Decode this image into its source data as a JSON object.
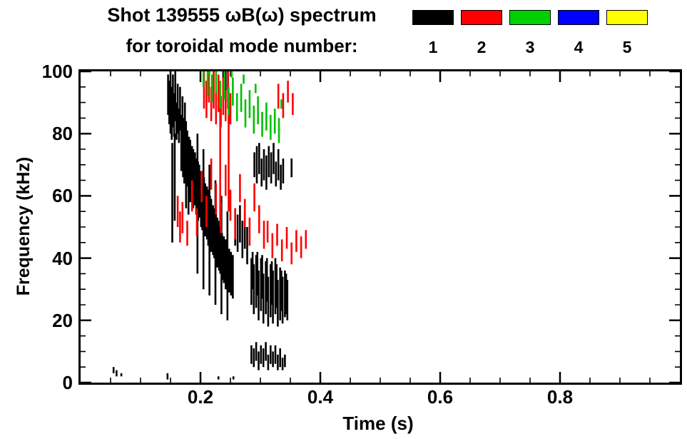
{
  "title_line1": "Shot 139555 ωB(ω) spectrum",
  "title_line2": "for toroidal mode number:",
  "legend": {
    "modes": [
      {
        "label": "1",
        "color": "#000000"
      },
      {
        "label": "2",
        "color": "#ff0000"
      },
      {
        "label": "3",
        "color": "#00d000"
      },
      {
        "label": "4",
        "color": "#0000ff"
      },
      {
        "label": "5",
        "color": "#ffff00"
      }
    ]
  },
  "chart_data": {
    "type": "scatter",
    "title": "Shot 139555 ωB(ω) spectrum for toroidal mode number: 1 2 3 4 5",
    "xlabel": "Time (s)",
    "ylabel": "Frequency (kHz)",
    "xlim": [
      0,
      1
    ],
    "ylim": [
      0,
      100
    ],
    "grid": false,
    "legend_position": "top-right",
    "xticks": {
      "major": [
        0.2,
        0.4,
        0.6,
        0.8
      ],
      "labels": [
        "0.2",
        "0.4",
        "0.6",
        "0.8"
      ],
      "minor_step": 0.05
    },
    "yticks": {
      "major": [
        0,
        20,
        40,
        60,
        80,
        100
      ],
      "labels": [
        "0",
        "20",
        "40",
        "60",
        "80",
        "100"
      ],
      "minor_step": 5
    },
    "segment_format": "[time_s, freq_low_kHz, freq_high_kHz]",
    "series": [
      {
        "name": "n1",
        "mode_number": 1,
        "color": "#000000",
        "segments": [
          [
            0.146,
            86,
            99
          ],
          [
            0.148,
            83,
            97
          ],
          [
            0.15,
            80,
            100
          ],
          [
            0.152,
            78,
            95
          ],
          [
            0.154,
            82,
            99
          ],
          [
            0.156,
            79,
            93
          ],
          [
            0.158,
            84,
            100
          ],
          [
            0.16,
            78,
            90
          ],
          [
            0.162,
            80,
            96
          ],
          [
            0.164,
            77,
            88
          ],
          [
            0.166,
            81,
            95
          ],
          [
            0.168,
            78,
            86
          ],
          [
            0.17,
            80,
            92
          ],
          [
            0.172,
            77,
            85
          ],
          [
            0.174,
            79,
            90
          ],
          [
            0.176,
            76,
            84
          ],
          [
            0.153,
            45,
            77
          ],
          [
            0.157,
            52,
            80
          ],
          [
            0.176,
            56,
            66
          ],
          [
            0.18,
            54,
            64
          ],
          [
            0.168,
            68,
            83
          ],
          [
            0.171,
            66,
            84
          ],
          [
            0.173,
            64,
            82
          ],
          [
            0.176,
            62,
            80
          ],
          [
            0.178,
            63,
            81
          ],
          [
            0.181,
            60,
            79
          ],
          [
            0.183,
            58,
            78
          ],
          [
            0.186,
            59,
            76
          ],
          [
            0.188,
            56,
            75
          ],
          [
            0.191,
            57,
            74
          ],
          [
            0.193,
            54,
            72
          ],
          [
            0.196,
            52,
            71
          ],
          [
            0.198,
            53,
            70
          ],
          [
            0.201,
            50,
            68
          ],
          [
            0.203,
            49,
            67
          ],
          [
            0.206,
            50,
            66
          ],
          [
            0.208,
            47,
            64
          ],
          [
            0.211,
            46,
            63
          ],
          [
            0.213,
            44,
            62
          ],
          [
            0.216,
            45,
            60
          ],
          [
            0.218,
            42,
            59
          ],
          [
            0.221,
            41,
            57
          ],
          [
            0.223,
            40,
            56
          ],
          [
            0.226,
            38,
            55
          ],
          [
            0.228,
            37,
            53
          ],
          [
            0.231,
            36,
            52
          ],
          [
            0.233,
            35,
            50
          ],
          [
            0.236,
            33,
            48
          ],
          [
            0.239,
            32,
            47
          ],
          [
            0.242,
            30,
            46
          ],
          [
            0.245,
            31,
            44
          ],
          [
            0.248,
            29,
            43
          ],
          [
            0.251,
            28,
            42
          ],
          [
            0.254,
            27,
            41
          ],
          [
            0.258,
            44,
            56
          ],
          [
            0.262,
            42,
            54
          ],
          [
            0.266,
            45,
            57
          ],
          [
            0.27,
            40,
            52
          ],
          [
            0.274,
            43,
            55
          ],
          [
            0.278,
            38,
            50
          ],
          [
            0.195,
            35,
            80
          ],
          [
            0.205,
            30,
            75
          ],
          [
            0.215,
            28,
            70
          ],
          [
            0.225,
            25,
            65
          ],
          [
            0.235,
            22,
            60
          ],
          [
            0.245,
            20,
            55
          ],
          [
            0.238,
            92,
            100
          ],
          [
            0.242,
            90,
            100
          ],
          [
            0.246,
            94,
            100
          ],
          [
            0.285,
            25,
            40
          ],
          [
            0.289,
            22,
            38
          ],
          [
            0.293,
            24,
            41
          ],
          [
            0.297,
            20,
            36
          ],
          [
            0.301,
            23,
            40
          ],
          [
            0.305,
            19,
            35
          ],
          [
            0.309,
            22,
            39
          ],
          [
            0.313,
            18,
            34
          ],
          [
            0.317,
            21,
            38
          ],
          [
            0.321,
            19,
            36
          ],
          [
            0.325,
            22,
            40
          ],
          [
            0.329,
            18,
            33
          ],
          [
            0.333,
            20,
            37
          ],
          [
            0.337,
            19,
            34
          ],
          [
            0.341,
            21,
            36
          ],
          [
            0.345,
            20,
            33
          ],
          [
            0.287,
            30,
            42
          ],
          [
            0.295,
            28,
            42
          ],
          [
            0.303,
            27,
            41
          ],
          [
            0.311,
            26,
            40
          ],
          [
            0.319,
            25,
            39
          ],
          [
            0.327,
            24,
            38
          ],
          [
            0.335,
            23,
            36
          ],
          [
            0.343,
            22,
            35
          ],
          [
            0.29,
            66,
            74
          ],
          [
            0.294,
            64,
            76
          ],
          [
            0.298,
            67,
            77
          ],
          [
            0.302,
            63,
            72
          ],
          [
            0.306,
            65,
            75
          ],
          [
            0.31,
            62,
            73
          ],
          [
            0.314,
            66,
            76
          ],
          [
            0.318,
            64,
            74
          ],
          [
            0.322,
            67,
            77
          ],
          [
            0.326,
            63,
            71
          ],
          [
            0.33,
            65,
            75
          ],
          [
            0.334,
            62,
            70
          ],
          [
            0.338,
            64,
            72
          ],
          [
            0.352,
            66,
            72
          ],
          [
            0.285,
            6,
            12
          ],
          [
            0.289,
            5,
            11
          ],
          [
            0.293,
            7,
            13
          ],
          [
            0.297,
            4,
            10
          ],
          [
            0.301,
            6,
            12
          ],
          [
            0.305,
            5,
            11
          ],
          [
            0.309,
            7,
            13
          ],
          [
            0.313,
            4,
            9
          ],
          [
            0.317,
            6,
            12
          ],
          [
            0.321,
            5,
            10
          ],
          [
            0.325,
            6,
            12
          ],
          [
            0.329,
            4,
            9
          ],
          [
            0.333,
            5,
            11
          ],
          [
            0.337,
            4,
            8
          ],
          [
            0.341,
            5,
            9
          ],
          [
            0.055,
            3,
            5
          ],
          [
            0.06,
            2,
            4
          ],
          [
            0.068,
            2,
            3
          ],
          [
            0.145,
            1,
            3
          ],
          [
            0.23,
            1,
            2
          ],
          [
            0.255,
            1,
            2
          ]
        ]
      },
      {
        "name": "n2",
        "mode_number": 2,
        "color": "#ff0000",
        "segments": [
          [
            0.206,
            88,
            100
          ],
          [
            0.21,
            85,
            97
          ],
          [
            0.214,
            90,
            100
          ],
          [
            0.218,
            84,
            95
          ],
          [
            0.222,
            88,
            100
          ],
          [
            0.226,
            83,
            94
          ],
          [
            0.23,
            87,
            99
          ],
          [
            0.234,
            82,
            92
          ],
          [
            0.238,
            86,
            98
          ],
          [
            0.242,
            84,
            94
          ],
          [
            0.246,
            88,
            100
          ],
          [
            0.25,
            83,
            93
          ],
          [
            0.233,
            50,
            95
          ],
          [
            0.247,
            55,
            90
          ],
          [
            0.162,
            50,
            60
          ],
          [
            0.166,
            45,
            55
          ],
          [
            0.17,
            48,
            58
          ],
          [
            0.178,
            44,
            52
          ],
          [
            0.186,
            55,
            65
          ],
          [
            0.194,
            47,
            56
          ],
          [
            0.202,
            58,
            68
          ],
          [
            0.21,
            50,
            60
          ],
          [
            0.218,
            62,
            72
          ],
          [
            0.226,
            54,
            64
          ],
          [
            0.234,
            48,
            58
          ],
          [
            0.242,
            60,
            70
          ],
          [
            0.25,
            52,
            62
          ],
          [
            0.258,
            46,
            56
          ],
          [
            0.266,
            58,
            67
          ],
          [
            0.274,
            50,
            59
          ],
          [
            0.282,
            44,
            53
          ],
          [
            0.29,
            55,
            64
          ],
          [
            0.298,
            48,
            57
          ],
          [
            0.306,
            43,
            52
          ],
          [
            0.312,
            45,
            52
          ],
          [
            0.32,
            40,
            48
          ],
          [
            0.328,
            44,
            51
          ],
          [
            0.336,
            39,
            46
          ],
          [
            0.344,
            43,
            50
          ],
          [
            0.352,
            38,
            45
          ],
          [
            0.36,
            42,
            49
          ],
          [
            0.368,
            40,
            47
          ],
          [
            0.376,
            43,
            49
          ],
          [
            0.33,
            88,
            96
          ],
          [
            0.338,
            85,
            93
          ],
          [
            0.346,
            90,
            97
          ],
          [
            0.354,
            86,
            93
          ]
        ]
      },
      {
        "name": "n3",
        "mode_number": 3,
        "color": "#00c000",
        "segments": [
          [
            0.205,
            95,
            100
          ],
          [
            0.212,
            92,
            100
          ],
          [
            0.219,
            90,
            99
          ],
          [
            0.226,
            93,
            100
          ],
          [
            0.233,
            88,
            97
          ],
          [
            0.24,
            91,
            100
          ],
          [
            0.247,
            86,
            95
          ],
          [
            0.254,
            89,
            98
          ],
          [
            0.261,
            84,
            93
          ],
          [
            0.268,
            87,
            96
          ],
          [
            0.275,
            82,
            91
          ],
          [
            0.282,
            85,
            94
          ],
          [
            0.289,
            80,
            89
          ],
          [
            0.296,
            83,
            92
          ],
          [
            0.303,
            79,
            87
          ],
          [
            0.31,
            81,
            90
          ],
          [
            0.317,
            78,
            86
          ],
          [
            0.324,
            80,
            88
          ],
          [
            0.331,
            77,
            85
          ],
          [
            0.215,
            99,
            100
          ],
          [
            0.252,
            98,
            100
          ],
          [
            0.272,
            96,
            99
          ],
          [
            0.292,
            93,
            96
          ],
          [
            0.335,
            88,
            91
          ]
        ]
      },
      {
        "name": "n4",
        "mode_number": 4,
        "color": "#0000ff",
        "segments": []
      },
      {
        "name": "n5",
        "mode_number": 5,
        "color": "#ffff00",
        "segments": []
      }
    ]
  }
}
